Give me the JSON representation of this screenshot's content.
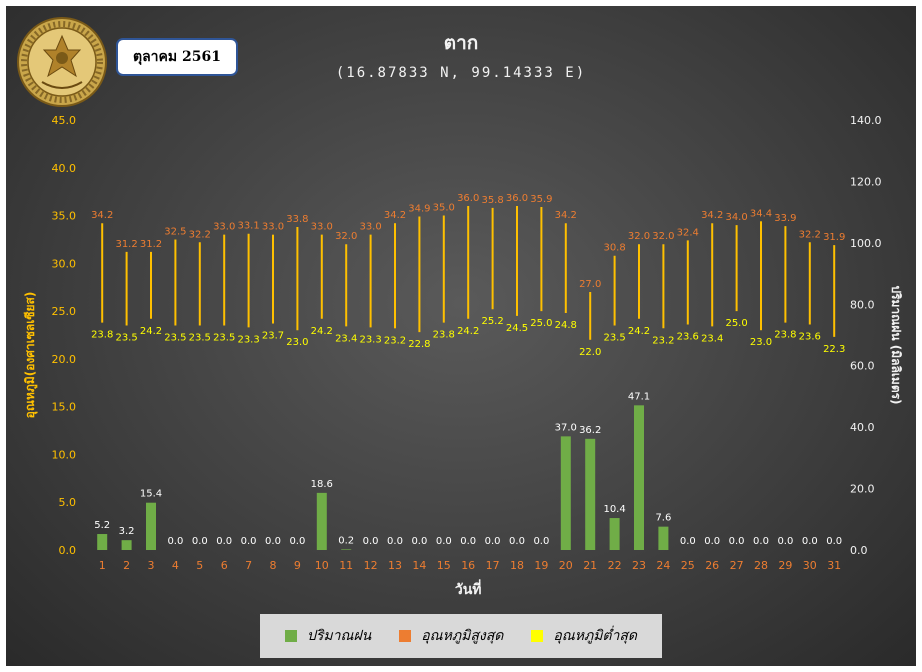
{
  "header": {
    "title": "ตาก",
    "subtitle": "(16.87833 N, 99.14333 E)",
    "period": "ตุลาคม 2561",
    "logo_text": "กรมอุตุนิยมวิทยา METEOROLOGICAL DEPARTMENT"
  },
  "colors": {
    "rain": "#70ad47",
    "tmax": "#ed7d31",
    "tmin": "#ffff00",
    "range_bar": "#ffc000",
    "axis_left": "#ffc000",
    "axis_right": "#f2f2f2",
    "x_tick": "#ed7d31"
  },
  "chart_data": {
    "type": "bar",
    "xlabel": "วันที่",
    "ylabel_left": "อุณหภูมิ(องศาเซลเซียส)",
    "ylabel_right": "ปริมาณฝน (มิลลิเมตร)",
    "ylim_left": [
      0,
      45
    ],
    "yticks_left": [
      "0.0",
      "5.0",
      "10.0",
      "15.0",
      "20.0",
      "25.0",
      "30.0",
      "35.0",
      "40.0",
      "45.0"
    ],
    "ylim_right": [
      0,
      140
    ],
    "yticks_right": [
      "0.0",
      "20.0",
      "40.0",
      "60.0",
      "80.0",
      "100.0",
      "120.0",
      "140.0"
    ],
    "grid": false,
    "legend_position": "bottom",
    "categories": [
      "1",
      "2",
      "3",
      "4",
      "5",
      "6",
      "7",
      "8",
      "9",
      "10",
      "11",
      "12",
      "13",
      "14",
      "15",
      "16",
      "17",
      "18",
      "19",
      "20",
      "21",
      "22",
      "23",
      "24",
      "25",
      "26",
      "27",
      "28",
      "29",
      "30",
      "31"
    ],
    "series": [
      {
        "name": "ปริมาณฝน",
        "type": "bar",
        "axis": "right",
        "values": [
          5.2,
          3.2,
          15.4,
          0.0,
          0.0,
          0.0,
          0.0,
          0.0,
          0.0,
          18.6,
          0.2,
          0.0,
          0.0,
          0.0,
          0.0,
          0.0,
          0.0,
          0.0,
          0.0,
          37.0,
          36.2,
          10.4,
          47.1,
          7.6,
          0.0,
          0.0,
          0.0,
          0.0,
          0.0,
          0.0,
          0.0
        ]
      },
      {
        "name": "อุณหภูมิสูงสุด",
        "type": "high",
        "axis": "left",
        "values": [
          34.2,
          31.2,
          31.2,
          32.5,
          32.2,
          33.0,
          33.1,
          33.0,
          33.8,
          33.0,
          32.0,
          33.0,
          34.2,
          34.9,
          35.0,
          36.0,
          35.8,
          36.0,
          35.9,
          34.2,
          27.0,
          30.8,
          32.0,
          32.0,
          32.4,
          34.2,
          34.0,
          34.4,
          33.9,
          32.2,
          31.9
        ]
      },
      {
        "name": "อุณหภูมิต่ำสุด",
        "type": "low",
        "axis": "left",
        "values": [
          23.8,
          23.5,
          24.2,
          23.5,
          23.5,
          23.5,
          23.3,
          23.7,
          23.0,
          24.2,
          23.4,
          23.3,
          23.2,
          22.8,
          23.8,
          24.2,
          25.2,
          24.5,
          25.0,
          24.8,
          22.0,
          23.5,
          24.2,
          23.2,
          23.6,
          23.4,
          25.0,
          23.0,
          23.8,
          23.6,
          22.3
        ]
      }
    ]
  }
}
